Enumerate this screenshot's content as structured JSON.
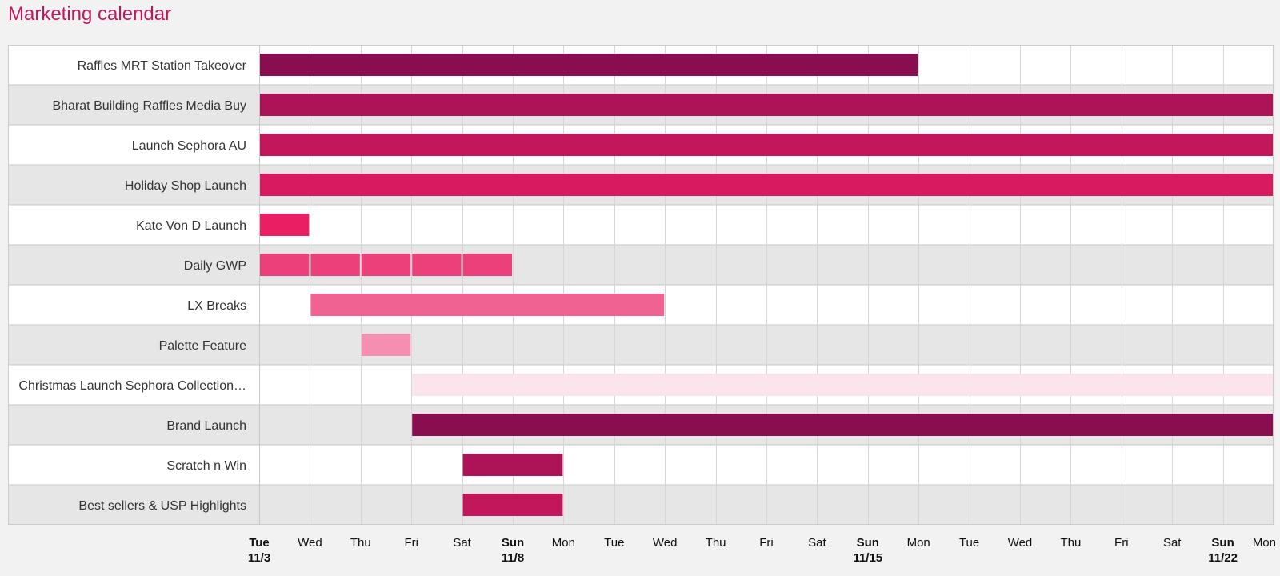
{
  "page": {
    "title": "Marketing calendar"
  },
  "chart_data": {
    "type": "gantt",
    "title": "Marketing calendar",
    "x_range": [
      "2015-11-03",
      "2015-11-23"
    ],
    "x_ticks": [
      {
        "date": "2015-11-03",
        "day": "Tue",
        "date_label": "11/3",
        "bold": true
      },
      {
        "date": "2015-11-04",
        "day": "Wed"
      },
      {
        "date": "2015-11-05",
        "day": "Thu"
      },
      {
        "date": "2015-11-06",
        "day": "Fri"
      },
      {
        "date": "2015-11-07",
        "day": "Sat"
      },
      {
        "date": "2015-11-08",
        "day": "Sun",
        "date_label": "11/8",
        "bold": true
      },
      {
        "date": "2015-11-09",
        "day": "Mon"
      },
      {
        "date": "2015-11-10",
        "day": "Tue"
      },
      {
        "date": "2015-11-11",
        "day": "Wed"
      },
      {
        "date": "2015-11-12",
        "day": "Thu"
      },
      {
        "date": "2015-11-13",
        "day": "Fri"
      },
      {
        "date": "2015-11-14",
        "day": "Sat"
      },
      {
        "date": "2015-11-15",
        "day": "Sun",
        "date_label": "11/15",
        "bold": true
      },
      {
        "date": "2015-11-16",
        "day": "Mon"
      },
      {
        "date": "2015-11-17",
        "day": "Tue"
      },
      {
        "date": "2015-11-18",
        "day": "Wed"
      },
      {
        "date": "2015-11-19",
        "day": "Thu"
      },
      {
        "date": "2015-11-20",
        "day": "Fri"
      },
      {
        "date": "2015-11-21",
        "day": "Sat"
      },
      {
        "date": "2015-11-22",
        "day": "Sun",
        "date_label": "11/22",
        "bold": true
      },
      {
        "date": "2015-11-23",
        "day": "Mon"
      }
    ],
    "rows": [
      {
        "label": "Raffles MRT Station Takeover",
        "color": "#880e4f",
        "bars": [
          {
            "start": "2015-11-03",
            "end": "2015-11-16"
          }
        ]
      },
      {
        "label": "Bharat Building Raffles Media Buy",
        "color": "#ad1457",
        "bars": [
          {
            "start": "2015-11-03",
            "end": "2015-11-23"
          }
        ]
      },
      {
        "label": "Launch Sephora AU",
        "color": "#c2185b",
        "bars": [
          {
            "start": "2015-11-03",
            "end": "2015-11-23"
          }
        ]
      },
      {
        "label": "Holiday Shop Launch",
        "color": "#d81b60",
        "bars": [
          {
            "start": "2015-11-03",
            "end": "2015-11-23"
          }
        ]
      },
      {
        "label": "Kate Von D Launch",
        "color": "#e91e63",
        "bars": [
          {
            "start": "2015-11-03",
            "end": "2015-11-04"
          }
        ]
      },
      {
        "label": "Daily GWP",
        "color": "#ec407a",
        "bars": [
          {
            "start": "2015-11-03",
            "end": "2015-11-04"
          },
          {
            "start": "2015-11-04",
            "end": "2015-11-05"
          },
          {
            "start": "2015-11-05",
            "end": "2015-11-06"
          },
          {
            "start": "2015-11-06",
            "end": "2015-11-07"
          },
          {
            "start": "2015-11-07",
            "end": "2015-11-08"
          }
        ]
      },
      {
        "label": "LX Breaks",
        "color": "#f06292",
        "bars": [
          {
            "start": "2015-11-04",
            "end": "2015-11-11"
          }
        ]
      },
      {
        "label": "Palette Feature",
        "color": "#f48fb1",
        "bars": [
          {
            "start": "2015-11-05",
            "end": "2015-11-06"
          }
        ]
      },
      {
        "label": "Christmas Launch Sephora Collection…",
        "color": "#fce4ec",
        "bars": [
          {
            "start": "2015-11-06",
            "end": "2015-11-23"
          }
        ]
      },
      {
        "label": "Brand Launch",
        "color": "#880e4f",
        "bars": [
          {
            "start": "2015-11-06",
            "end": "2015-11-23"
          }
        ]
      },
      {
        "label": "Scratch n Win",
        "color": "#ad1457",
        "bars": [
          {
            "start": "2015-11-07",
            "end": "2015-11-09"
          }
        ]
      },
      {
        "label": "Best sellers & USP Highlights",
        "color": "#c2185b",
        "bars": [
          {
            "start": "2015-11-07",
            "end": "2015-11-09"
          }
        ]
      }
    ],
    "grid": true,
    "row_colors": [
      "#ffffff",
      "#e6e6e6"
    ]
  }
}
